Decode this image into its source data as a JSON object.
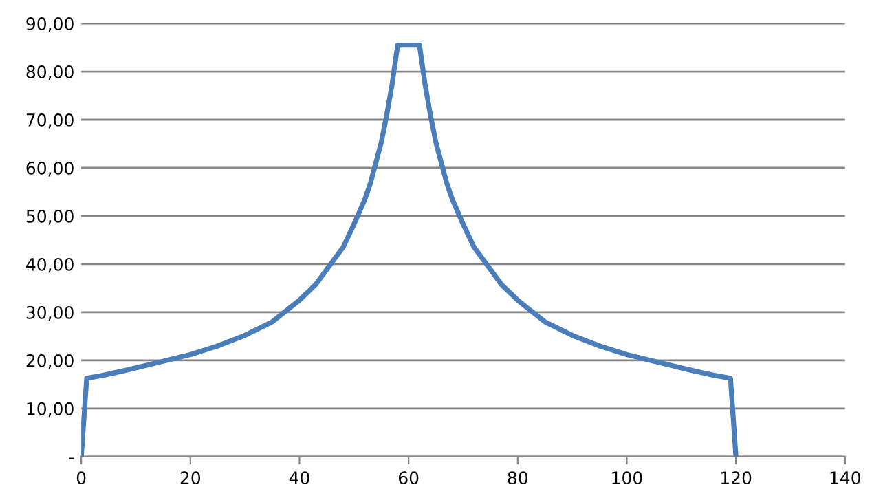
{
  "chart_data": {
    "type": "line",
    "color": "#4a7ebb",
    "x": [
      0,
      1,
      4,
      8,
      12,
      16,
      20,
      25,
      30,
      35,
      40,
      43,
      45,
      48,
      50,
      52,
      53,
      55,
      56,
      57,
      58,
      62,
      63,
      64,
      65,
      67,
      68,
      70,
      72,
      75,
      77,
      80,
      85,
      90,
      95,
      100,
      104,
      108,
      112,
      116,
      119,
      120
    ],
    "values": [
      0,
      16.3,
      16.9,
      17.9,
      19,
      20.1,
      21.2,
      23,
      25.2,
      28,
      32.5,
      35.8,
      38.9,
      43.5,
      48.3,
      53.5,
      56.8,
      65.3,
      71,
      77.5,
      85.5,
      85.5,
      77.5,
      71,
      65.3,
      56.8,
      53.5,
      48.3,
      43.5,
      38.9,
      35.8,
      32.5,
      28,
      25.2,
      23,
      21.2,
      20.1,
      19,
      17.9,
      16.9,
      16.3,
      0
    ],
    "xlim": [
      0,
      140
    ],
    "xticks": [
      0,
      20,
      40,
      60,
      80,
      100,
      120,
      140
    ],
    "ylim": [
      0,
      90
    ],
    "yticks": [
      {
        "value": 0,
        "label": "-"
      },
      {
        "value": 10,
        "label": "10,00"
      },
      {
        "value": 20,
        "label": "20,00"
      },
      {
        "value": 30,
        "label": "30,00"
      },
      {
        "value": 40,
        "label": "40,00"
      },
      {
        "value": 50,
        "label": "50,00"
      },
      {
        "value": 60,
        "label": "60,00"
      },
      {
        "value": 70,
        "label": "70,00"
      },
      {
        "value": 80,
        "label": "80,00"
      },
      {
        "value": 90,
        "label": "90,00"
      }
    ],
    "grid": "y",
    "marker": "none",
    "line_style": "solid"
  }
}
